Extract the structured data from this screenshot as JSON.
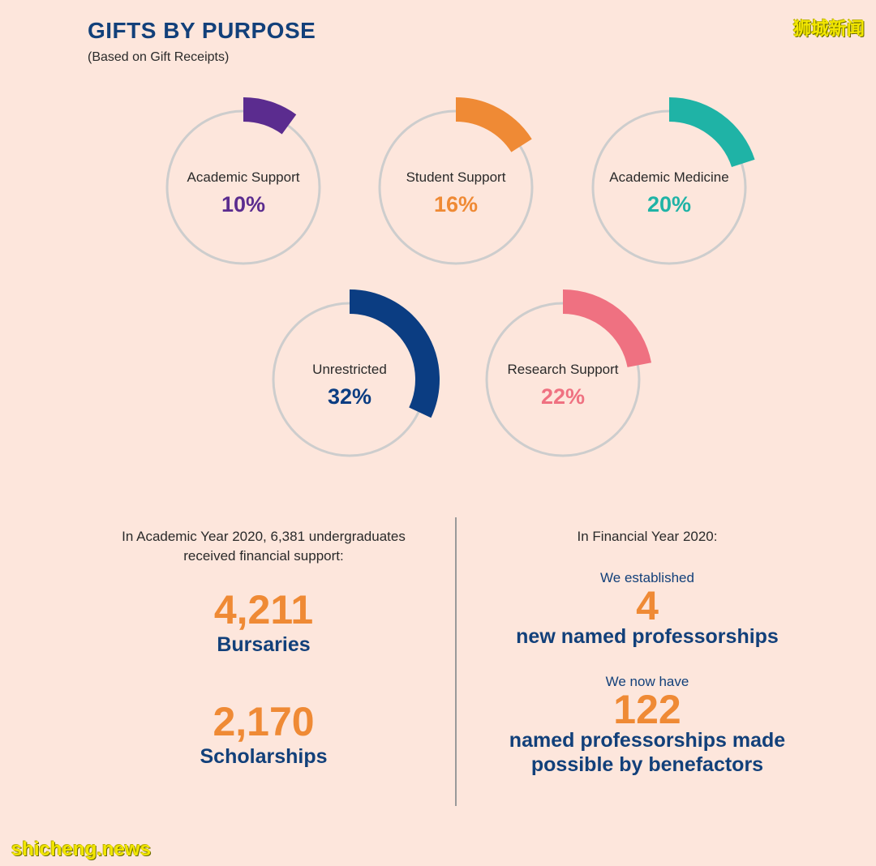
{
  "header": {
    "title": "GIFTS BY PURPOSE",
    "subtitle": "(Based on Gift Receipts)"
  },
  "watermarks": {
    "top_right": "狮城新闻",
    "bottom_left": "shicheng.news"
  },
  "chart_data": {
    "type": "pie",
    "title": "GIFTS BY PURPOSE",
    "subtitle": "(Based on Gift Receipts)",
    "unit": "%",
    "series": [
      {
        "name": "Academic Support",
        "value": 10,
        "label": "10%",
        "color": "#5b2c8f"
      },
      {
        "name": "Student Support",
        "value": 16,
        "label": "16%",
        "color": "#ef8a35"
      },
      {
        "name": "Academic Medicine",
        "value": 20,
        "label": "20%",
        "color": "#1fb3a6"
      },
      {
        "name": "Unrestricted",
        "value": 32,
        "label": "32%",
        "color": "#0b3d82"
      },
      {
        "name": "Research Support",
        "value": 22,
        "label": "22%",
        "color": "#ef7181"
      }
    ],
    "track_color": "#cdcdcd"
  },
  "left_panel": {
    "intro": "In Academic Year 2020, 6,381 undergraduates received financial support:",
    "stat1": {
      "value": "4,211",
      "label": "Bursaries"
    },
    "stat2": {
      "value": "2,170",
      "label": "Scholarships"
    }
  },
  "right_panel": {
    "intro": "In Financial Year 2020:",
    "stat1": {
      "pre": "We established",
      "value": "4",
      "label": "new named professorships"
    },
    "stat2": {
      "pre": "We now have",
      "value": "122",
      "label": "named professorships made possible by benefactors"
    }
  }
}
